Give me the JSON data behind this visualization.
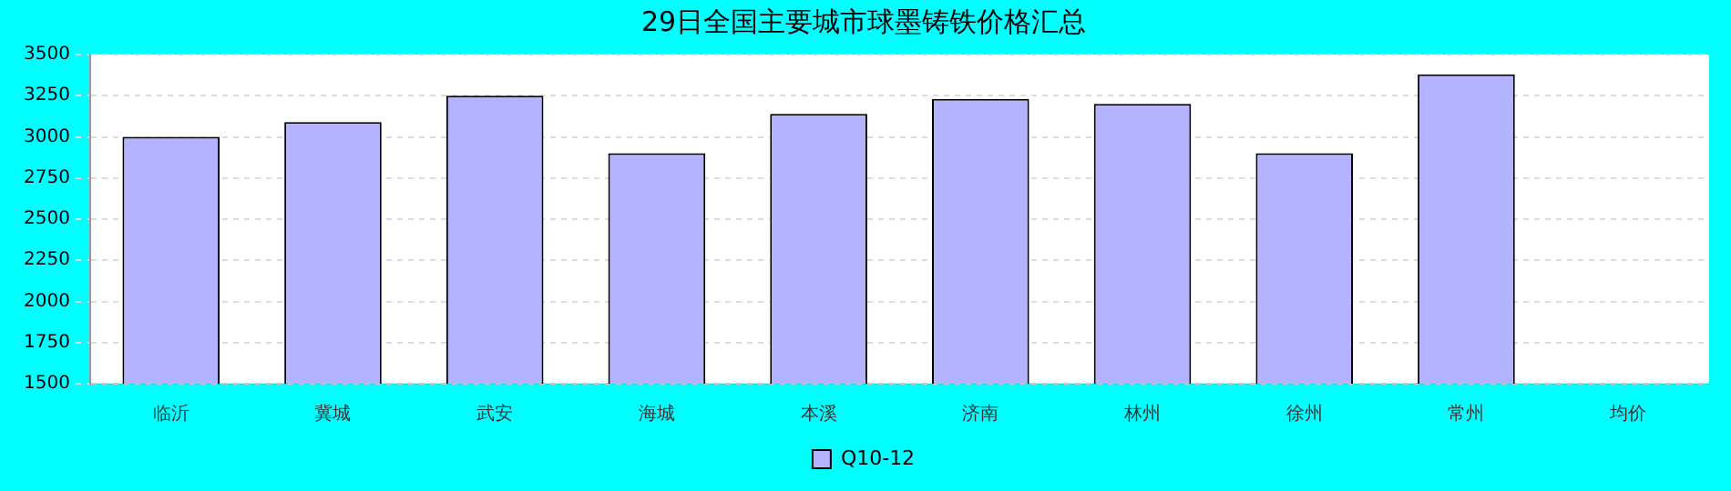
{
  "chart_data": {
    "type": "bar",
    "title": "29日全国主要城市球墨铸铁价格汇总",
    "categories": [
      "临沂",
      "冀城",
      "武安",
      "海城",
      "本溪",
      "济南",
      "林州",
      "徐州",
      "常州",
      "均价"
    ],
    "series": [
      {
        "name": "Q10-12",
        "color": "#b3b3ff",
        "values": [
          3000,
          3090,
          3250,
          2900,
          3140,
          3230,
          3200,
          2900,
          3380,
          null
        ]
      }
    ],
    "ylim": [
      1500,
      3500
    ],
    "yticks": [
      1500,
      1750,
      2000,
      2250,
      2500,
      2750,
      3000,
      3250,
      3500
    ],
    "grid": "y",
    "legend": "bottom"
  }
}
